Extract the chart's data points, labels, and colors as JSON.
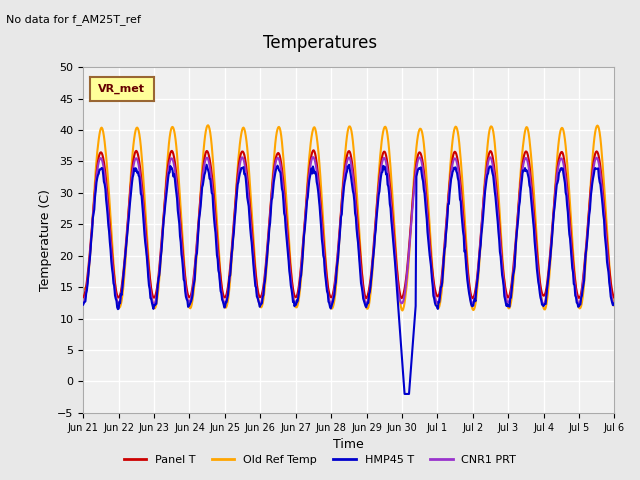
{
  "title": "Temperatures",
  "xlabel": "Time",
  "ylabel": "Temperature (C)",
  "note": "No data for f_AM25T_ref",
  "legend_label": "VR_met",
  "ylim": [
    -5,
    50
  ],
  "series": {
    "panel_t": {
      "label": "Panel T",
      "color": "#cc0000",
      "lw": 1.5
    },
    "old_ref_temp": {
      "label": "Old Ref Temp",
      "color": "#ffa500",
      "lw": 1.5
    },
    "hmp45_t": {
      "label": "HMP45 T",
      "color": "#0000cc",
      "lw": 1.5
    },
    "cnr1_prt": {
      "label": "CNR1 PRT",
      "color": "#9933cc",
      "lw": 1.5
    }
  },
  "bg_color": "#e8e8e8",
  "plot_bg_color": "#f0f0f0",
  "grid_color": "#ffffff",
  "yticks": [
    -5,
    0,
    5,
    10,
    15,
    20,
    25,
    30,
    35,
    40,
    45,
    50
  ],
  "xtick_labels": [
    "Jun 21",
    "Jun 22",
    "Jun 23",
    "Jun 24",
    "Jun 25",
    "Jun 26",
    "Jun 27",
    "Jun 28",
    "Jun 29",
    "Jun 30",
    "Jul 1",
    "Jul 2",
    "Jul 3",
    "Jul 4",
    "Jul 5",
    "Jul 6"
  ],
  "num_days": 15,
  "start_day": 0
}
